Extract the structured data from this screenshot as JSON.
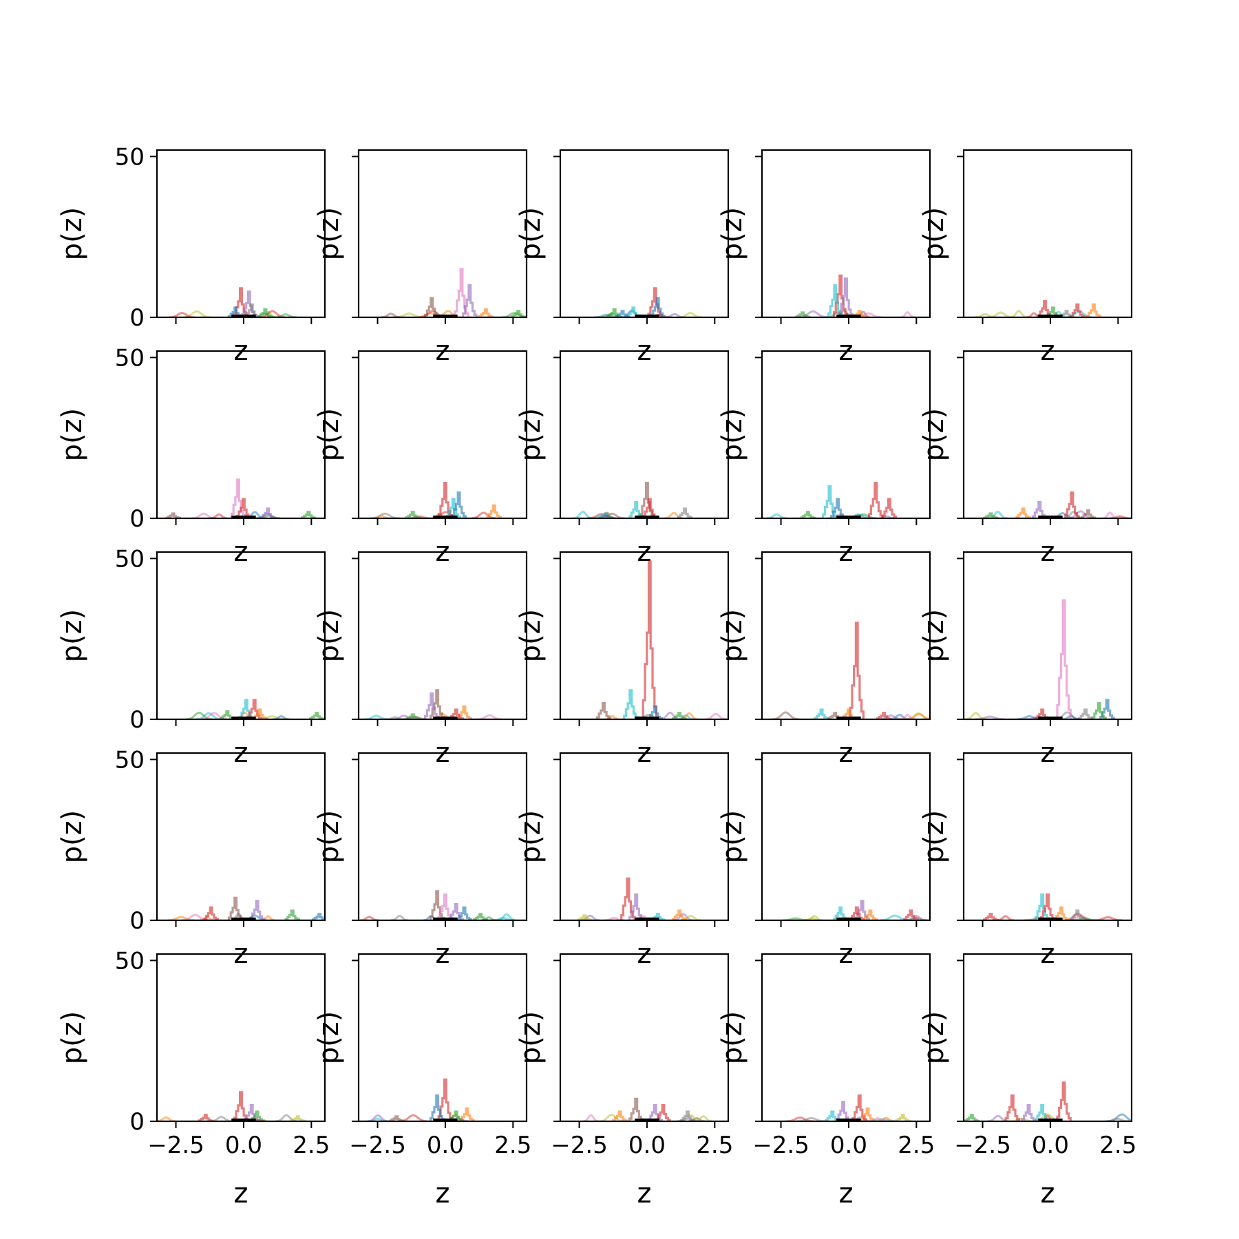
{
  "figure": {
    "grid_rows": 5,
    "grid_cols": 5
  },
  "chart_data": {
    "type": "line",
    "subtype": "histogram-step",
    "title": "",
    "xlabel": "z",
    "ylabel": "p(z)",
    "xlim": [
      -3.2,
      3.0
    ],
    "ylim": [
      0,
      52
    ],
    "xticks": [
      -2.5,
      0.0,
      2.5
    ],
    "xtick_labels": [
      "−2.5",
      "0.0",
      "2.5"
    ],
    "yticks": [
      0,
      50
    ],
    "ytick_labels": [
      "0",
      "50"
    ],
    "grid": false,
    "legend": "none",
    "series_alpha": 0.5,
    "palette": [
      "#1f77b4",
      "#ff7f0e",
      "#2ca02c",
      "#d62728",
      "#9467bd",
      "#8c564b",
      "#e377c2",
      "#7f7f7f",
      "#bcbd22",
      "#17becf"
    ],
    "reference_color": "#000000",
    "panels": [
      {
        "peaks": [
          [
            -0.1,
            9,
            3
          ],
          [
            0.2,
            8,
            4
          ],
          [
            -0.3,
            3,
            0
          ],
          [
            0.8,
            2.5,
            2
          ],
          [
            0.3,
            4,
            7
          ]
        ]
      },
      {
        "peaks": [
          [
            0.6,
            15,
            6
          ],
          [
            -0.5,
            6,
            5
          ],
          [
            0.9,
            10,
            4
          ],
          [
            1.5,
            2.5,
            1
          ],
          [
            2.7,
            2,
            2
          ]
        ]
      },
      {
        "peaks": [
          [
            0.3,
            9,
            3
          ],
          [
            0.4,
            6,
            0
          ],
          [
            -1.2,
            2.5,
            2
          ],
          [
            -0.5,
            3,
            9
          ],
          [
            -0.9,
            2,
            0
          ]
        ]
      },
      {
        "peaks": [
          [
            -0.3,
            13,
            3
          ],
          [
            -0.5,
            10,
            9
          ],
          [
            -0.1,
            12,
            4
          ],
          [
            -1.7,
            1.5,
            2
          ],
          [
            0.4,
            2,
            1
          ]
        ]
      },
      {
        "peaks": [
          [
            -0.2,
            5,
            3
          ],
          [
            1.0,
            4,
            3
          ],
          [
            1.6,
            4,
            1
          ],
          [
            0.1,
            3,
            2
          ],
          [
            0.6,
            2,
            7
          ]
        ]
      },
      {
        "peaks": [
          [
            -0.2,
            12,
            6
          ],
          [
            0.0,
            6,
            3
          ],
          [
            0.9,
            3,
            4
          ],
          [
            2.4,
            2,
            2
          ],
          [
            -2.6,
            1.5,
            5
          ]
        ]
      },
      {
        "peaks": [
          [
            0.0,
            11,
            3
          ],
          [
            0.3,
            6,
            9
          ],
          [
            0.5,
            8,
            0
          ],
          [
            1.8,
            4,
            1
          ],
          [
            -1.2,
            2,
            2
          ]
        ]
      },
      {
        "peaks": [
          [
            0.0,
            11,
            5
          ],
          [
            0.1,
            6,
            3
          ],
          [
            -0.4,
            5,
            9
          ],
          [
            1.4,
            3,
            7
          ],
          [
            -1.5,
            1.5,
            0
          ]
        ]
      },
      {
        "peaks": [
          [
            1.0,
            11,
            3
          ],
          [
            -0.7,
            10,
            9
          ],
          [
            -0.4,
            6,
            0
          ],
          [
            1.5,
            6,
            3
          ],
          [
            -1.5,
            2,
            2
          ]
        ]
      },
      {
        "peaks": [
          [
            0.8,
            8,
            3
          ],
          [
            -0.4,
            5,
            4
          ],
          [
            1.4,
            2.5,
            5
          ],
          [
            -1.0,
            3,
            1
          ],
          [
            -2.2,
            1.5,
            2
          ]
        ]
      },
      {
        "peaks": [
          [
            0.1,
            6,
            9
          ],
          [
            0.4,
            6,
            3
          ],
          [
            -0.6,
            2.5,
            2
          ],
          [
            2.7,
            2,
            2
          ],
          [
            0.6,
            3,
            1
          ]
        ]
      },
      {
        "peaks": [
          [
            -0.3,
            9,
            5
          ],
          [
            -0.5,
            8,
            4
          ],
          [
            0.7,
            4,
            1
          ],
          [
            0.4,
            3,
            3
          ],
          [
            -1.2,
            1.5,
            2
          ]
        ]
      },
      {
        "peaks": [
          [
            0.1,
            49,
            3
          ],
          [
            -0.6,
            9,
            9
          ],
          [
            -1.6,
            5,
            5
          ],
          [
            0.3,
            4,
            0
          ],
          [
            1.2,
            2,
            2
          ]
        ]
      },
      {
        "peaks": [
          [
            0.3,
            30,
            3
          ],
          [
            -1.0,
            3,
            9
          ],
          [
            0.0,
            3,
            1
          ],
          [
            1.3,
            2,
            3
          ],
          [
            -0.5,
            2,
            5
          ]
        ]
      },
      {
        "peaks": [
          [
            0.5,
            37,
            6
          ],
          [
            2.1,
            6,
            0
          ],
          [
            1.8,
            5,
            2
          ],
          [
            -0.3,
            3,
            3
          ],
          [
            1.3,
            3,
            7
          ]
        ]
      },
      {
        "peaks": [
          [
            -0.3,
            7,
            5
          ],
          [
            0.5,
            6,
            4
          ],
          [
            -1.2,
            4,
            3
          ],
          [
            1.8,
            3,
            2
          ],
          [
            2.8,
            2,
            0
          ]
        ]
      },
      {
        "peaks": [
          [
            -0.3,
            9,
            5
          ],
          [
            0.0,
            8,
            6
          ],
          [
            0.4,
            5,
            4
          ],
          [
            0.7,
            4,
            0
          ],
          [
            1.3,
            2,
            2
          ]
        ]
      },
      {
        "peaks": [
          [
            -0.7,
            13,
            3
          ],
          [
            -0.4,
            8,
            4
          ],
          [
            1.2,
            3,
            1
          ],
          [
            0.4,
            2,
            9
          ],
          [
            -2.3,
            1.5,
            8
          ]
        ]
      },
      {
        "peaks": [
          [
            0.5,
            6,
            4
          ],
          [
            -0.3,
            4,
            9
          ],
          [
            0.3,
            4,
            3
          ],
          [
            2.3,
            3,
            3
          ],
          [
            0.8,
            3,
            1
          ]
        ]
      },
      {
        "peaks": [
          [
            -0.3,
            8,
            9
          ],
          [
            -0.1,
            8,
            3
          ],
          [
            0.4,
            4,
            1
          ],
          [
            -2.2,
            2,
            3
          ],
          [
            1.0,
            3,
            7
          ]
        ]
      },
      {
        "peaks": [
          [
            -0.1,
            9,
            3
          ],
          [
            0.3,
            5,
            4
          ],
          [
            -1.4,
            2,
            3
          ],
          [
            2.0,
            1.5,
            8
          ],
          [
            0.5,
            3,
            2
          ]
        ]
      },
      {
        "peaks": [
          [
            0.0,
            13,
            3
          ],
          [
            -0.3,
            8,
            0
          ],
          [
            0.8,
            4,
            1
          ],
          [
            -1.8,
            1.5,
            5
          ],
          [
            0.4,
            3,
            2
          ]
        ]
      },
      {
        "peaks": [
          [
            -0.4,
            7,
            5
          ],
          [
            0.3,
            5,
            4
          ],
          [
            0.6,
            5,
            3
          ],
          [
            -1.0,
            3,
            1
          ],
          [
            1.5,
            3,
            7
          ]
        ]
      },
      {
        "peaks": [
          [
            0.4,
            8,
            3
          ],
          [
            -0.2,
            6,
            4
          ],
          [
            -0.6,
            3,
            9
          ],
          [
            2.0,
            2,
            8
          ],
          [
            0.7,
            4,
            1
          ]
        ]
      },
      {
        "peaks": [
          [
            0.5,
            12,
            3
          ],
          [
            -1.4,
            8,
            3
          ],
          [
            -0.8,
            5,
            4
          ],
          [
            -0.3,
            5,
            9
          ],
          [
            -2.9,
            2,
            2
          ]
        ]
      }
    ]
  }
}
